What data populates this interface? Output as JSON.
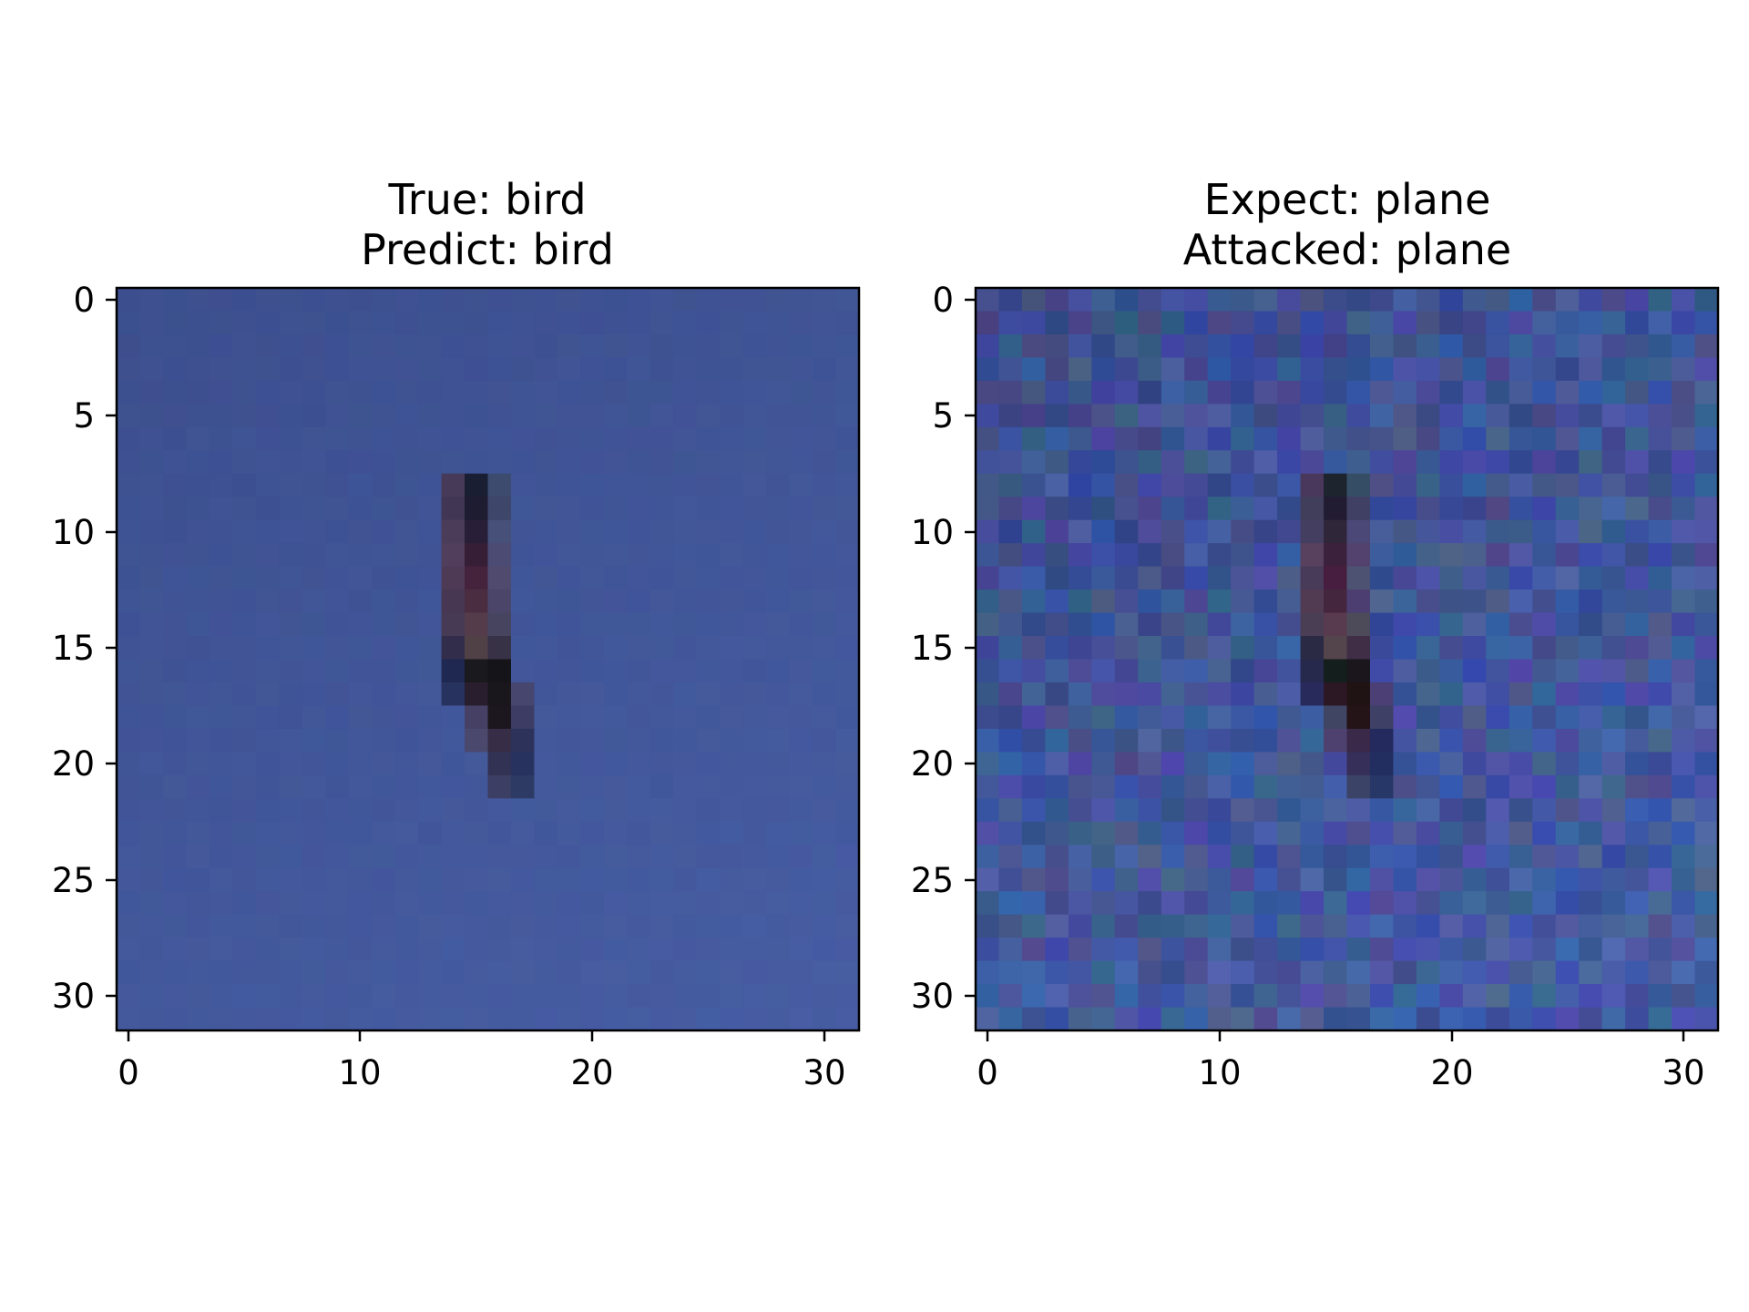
{
  "panels": [
    {
      "title_line1": "True: bird",
      "title_line2": "Predict: bird",
      "noise": "none",
      "x_ticks": [
        "0",
        "10",
        "20",
        "30"
      ],
      "y_ticks": [
        "0",
        "5",
        "10",
        "15",
        "20",
        "25",
        "30"
      ]
    },
    {
      "title_line1": "Expect: plane",
      "title_line2": "Attacked: plane",
      "noise": "adversarial-perturbation",
      "x_ticks": [
        "0",
        "10",
        "20",
        "30"
      ],
      "y_ticks": [
        "0",
        "5",
        "10",
        "15",
        "20",
        "25",
        "30"
      ]
    }
  ],
  "image_grid": {
    "rows": 32,
    "cols": 32
  },
  "colors": {
    "sky": "#3c4f8e",
    "object_dark": "#1a1520",
    "axis": "#000000"
  }
}
